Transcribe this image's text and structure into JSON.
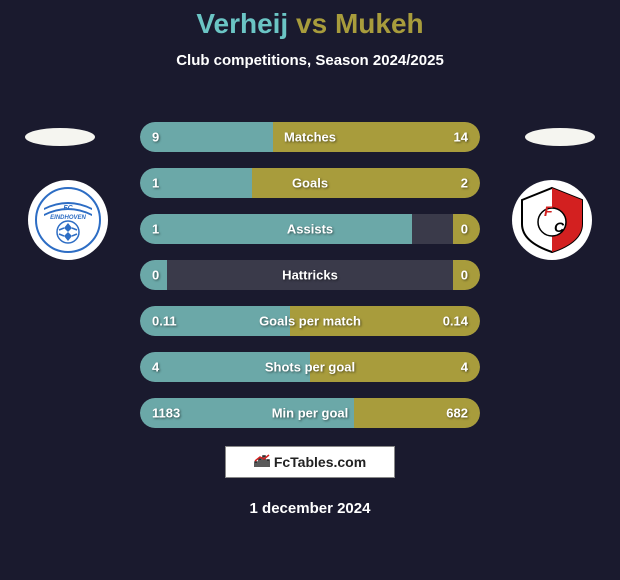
{
  "title": {
    "name1": "Verheij",
    "vs": "vs",
    "name2": "Mukeh",
    "name1_color": "#6bc5c5",
    "name2_color": "#a89c3c"
  },
  "subtitle": "Club competitions, Season 2024/2025",
  "colors": {
    "bar_left": "#6ba8a8",
    "bar_right": "#a89c3c",
    "bar_bg": "#3a3a4a",
    "background": "#1a1a2e",
    "text": "#ffffff"
  },
  "club_left": {
    "name": "FC Eindhoven",
    "bg_color": "#ffffff",
    "accent_color": "#2d6dc4"
  },
  "club_right": {
    "name": "FC Utrecht",
    "bg_color": "#ffffff",
    "accent_color": "#d32020"
  },
  "stats": [
    {
      "label": "Matches",
      "left_value": "9",
      "right_value": "14",
      "left_pct": 39,
      "right_pct": 61
    },
    {
      "label": "Goals",
      "left_value": "1",
      "right_value": "2",
      "left_pct": 33,
      "right_pct": 67
    },
    {
      "label": "Assists",
      "left_value": "1",
      "right_value": "0",
      "left_pct": 80,
      "right_pct": 8
    },
    {
      "label": "Hattricks",
      "left_value": "0",
      "right_value": "0",
      "left_pct": 8,
      "right_pct": 8
    },
    {
      "label": "Goals per match",
      "left_value": "0.11",
      "right_value": "0.14",
      "left_pct": 44,
      "right_pct": 56
    },
    {
      "label": "Shots per goal",
      "left_value": "4",
      "right_value": "4",
      "left_pct": 50,
      "right_pct": 50
    },
    {
      "label": "Min per goal",
      "left_value": "1183",
      "right_value": "682",
      "left_pct": 63,
      "right_pct": 37
    }
  ],
  "branding": "FcTables.com",
  "date": "1 december 2024"
}
